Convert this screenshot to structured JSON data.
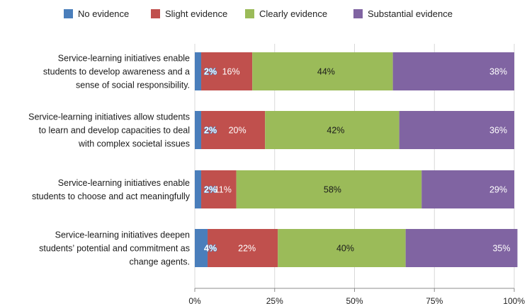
{
  "chart_data": {
    "type": "bar",
    "orientation": "horizontal",
    "stacked": true,
    "title": "",
    "xlabel": "",
    "ylabel": "",
    "xlim": [
      0,
      100
    ],
    "x_ticks": [
      "0%",
      "25%",
      "50%",
      "75%",
      "100%"
    ],
    "grid": true,
    "legend_position": "top",
    "categories": [
      [
        "Service-learning initiatives enable",
        "students to develop awareness and a",
        "sense of social responsibility."
      ],
      [
        "Service-learning initiatives allow students",
        "to learn and develop capacities to deal",
        "with complex societal issues"
      ],
      [
        "Service-learning initiatives enable",
        "students to choose and act meaningfully"
      ],
      [
        "Service-learning initiatives deepen",
        "students’ potential and commitment as",
        "change agents."
      ]
    ],
    "series": [
      {
        "name": "No evidence",
        "color": "#4a7ebb",
        "label_color": "#ffffff",
        "label_outline": "#4a7ebb",
        "values": [
          2,
          2,
          2,
          4
        ],
        "labels": [
          "2%",
          "2%",
          "2%",
          "4%"
        ]
      },
      {
        "name": "Slight evidence",
        "color": "#c0504d",
        "label_color": "#ffffff",
        "values": [
          16,
          20,
          11,
          22
        ],
        "labels": [
          "16%",
          "20%",
          "11%",
          "22%"
        ]
      },
      {
        "name": "Clearly evidence",
        "color": "#9bbb59",
        "label_color": "#1a1a1a",
        "values": [
          44,
          42,
          58,
          40
        ],
        "labels": [
          "44%",
          "42%",
          "58%",
          "40%"
        ]
      },
      {
        "name": "Substantial evidence",
        "color": "#8064a2",
        "label_color": "#ffffff",
        "values": [
          38,
          36,
          29,
          35
        ],
        "labels": [
          "38%",
          "36%",
          "29%",
          "35%"
        ]
      }
    ]
  }
}
